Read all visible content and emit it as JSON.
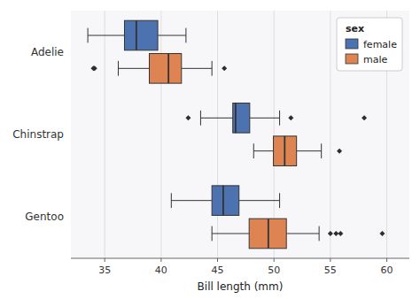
{
  "chart_data": {
    "type": "box",
    "orientation": "horizontal",
    "xlabel": "Bill length (mm)",
    "legend_title": "sex",
    "legend": "upper right",
    "grid": true,
    "categories": [
      "Adelie",
      "Chinstrap",
      "Gentoo"
    ],
    "xlim": [
      32.0,
      62.0
    ],
    "xticks": [
      35,
      40,
      45,
      50,
      55,
      60
    ],
    "series": [
      {
        "name": "female",
        "color": "#4c72b0",
        "values": [
          {
            "whislo": 33.5,
            "q1": 36.75,
            "med": 37.8,
            "q3": 39.7,
            "whishi": 42.2,
            "fliers": []
          },
          {
            "whislo": 43.5,
            "q1": 46.35,
            "med": 46.6,
            "q3": 47.85,
            "whishi": 50.5,
            "fliers": [
              42.4,
              51.5,
              58.0
            ]
          },
          {
            "whislo": 40.9,
            "q1": 44.5,
            "med": 45.5,
            "q3": 46.9,
            "whishi": 50.5,
            "fliers": []
          }
        ]
      },
      {
        "name": "male",
        "color": "#dd8452",
        "values": [
          {
            "whislo": 36.2,
            "q1": 38.95,
            "med": 40.65,
            "q3": 41.8,
            "whishi": 44.5,
            "fliers": [
              34.0,
              34.1,
              45.6
            ]
          },
          {
            "whislo": 48.2,
            "q1": 49.95,
            "med": 50.95,
            "q3": 52.0,
            "whishi": 54.2,
            "fliers": [
              55.8
            ]
          },
          {
            "whislo": 44.5,
            "q1": 47.8,
            "med": 49.5,
            "q3": 51.1,
            "whishi": 54.0,
            "fliers": [
              55.0,
              55.5,
              55.9,
              59.6
            ]
          }
        ]
      }
    ]
  }
}
